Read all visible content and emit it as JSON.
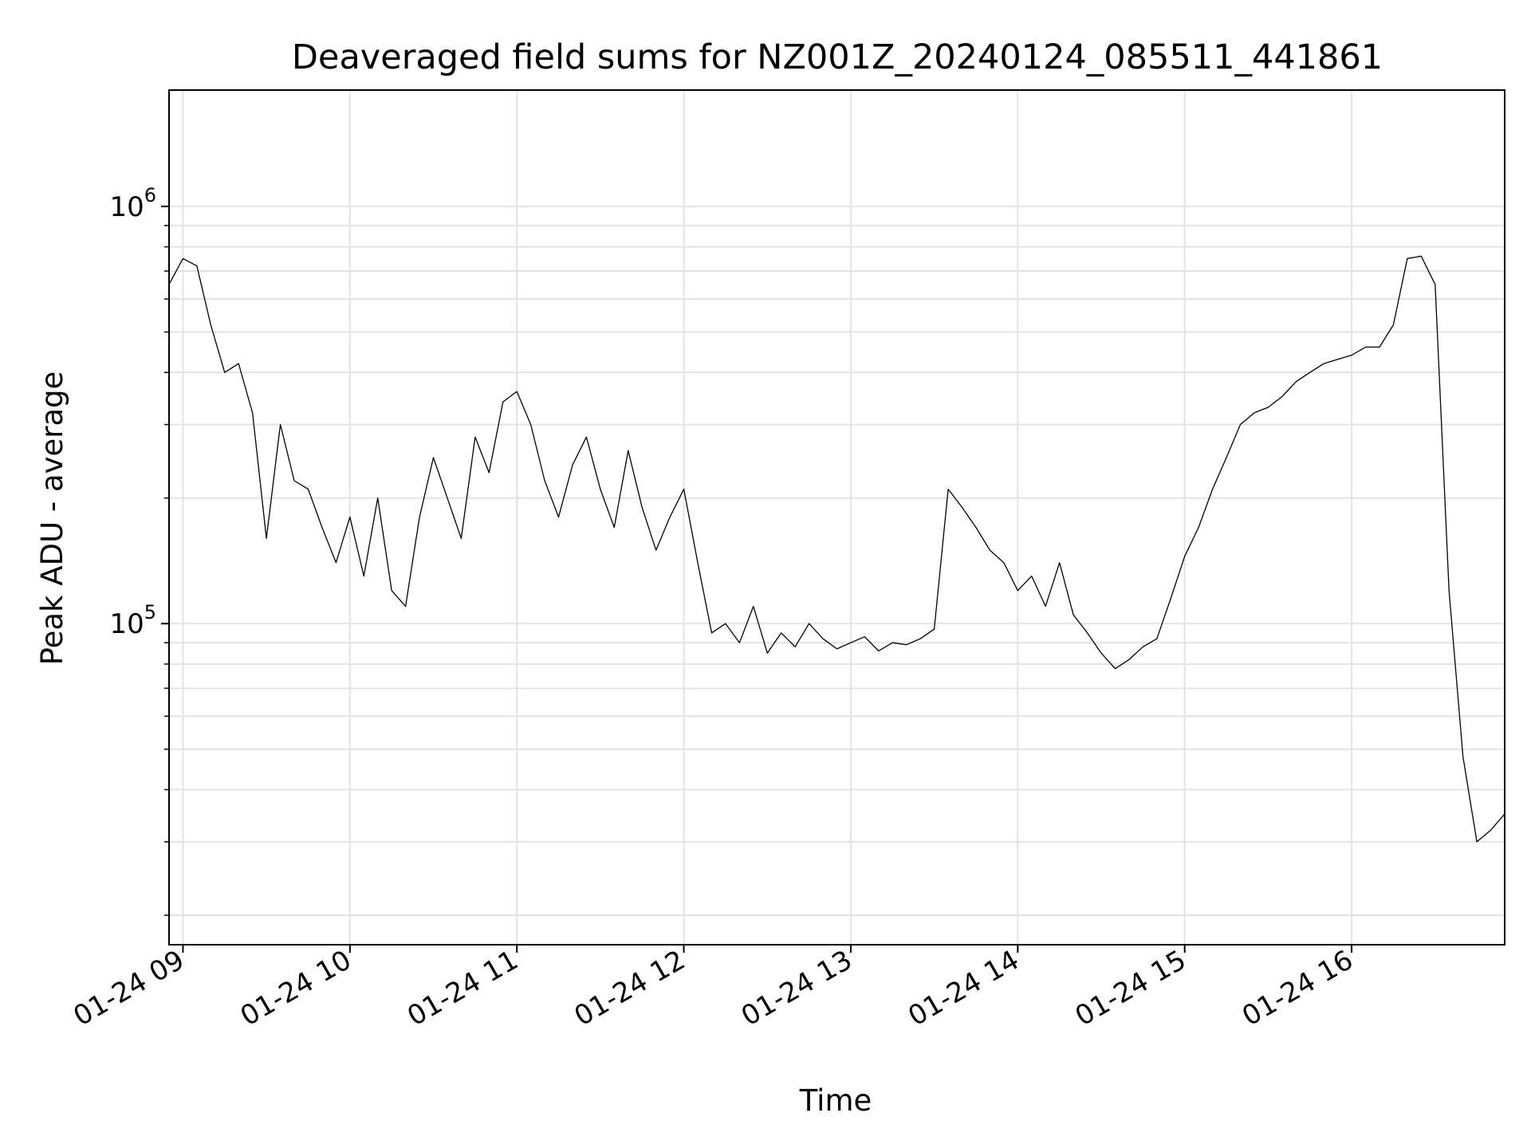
{
  "chart_data": {
    "type": "line",
    "title": "Deaveraged field sums for NZ001Z_20240124_085511_441861",
    "xlabel": "Time",
    "ylabel": "Peak ADU - average",
    "x_ticks": [
      "01-24 09",
      "01-24 10",
      "01-24 11",
      "01-24 12",
      "01-24 13",
      "01-24 14",
      "01-24 15",
      "01-24 16"
    ],
    "y_ticks": [
      {
        "base": "10",
        "exp": "5",
        "value": 100000
      },
      {
        "base": "10",
        "exp": "6",
        "value": 1000000
      }
    ],
    "x_range": [
      "2024-01-24 08:55",
      "2024-01-24 16:55"
    ],
    "y_range": [
      17000,
      1900000
    ],
    "y_scale": "log",
    "grid": true,
    "line_color": "#000000",
    "series": [
      {
        "x": [
          "2024-01-24 08:55",
          "2024-01-24 09:00",
          "2024-01-24 09:05",
          "2024-01-24 09:10",
          "2024-01-24 09:15",
          "2024-01-24 09:20",
          "2024-01-24 09:25",
          "2024-01-24 09:30",
          "2024-01-24 09:35",
          "2024-01-24 09:40",
          "2024-01-24 09:45",
          "2024-01-24 09:50",
          "2024-01-24 09:55",
          "2024-01-24 10:00",
          "2024-01-24 10:05",
          "2024-01-24 10:10",
          "2024-01-24 10:15",
          "2024-01-24 10:20",
          "2024-01-24 10:25",
          "2024-01-24 10:30",
          "2024-01-24 10:35",
          "2024-01-24 10:40",
          "2024-01-24 10:45",
          "2024-01-24 10:50",
          "2024-01-24 10:55",
          "2024-01-24 11:00",
          "2024-01-24 11:05",
          "2024-01-24 11:10",
          "2024-01-24 11:15",
          "2024-01-24 11:20",
          "2024-01-24 11:25",
          "2024-01-24 11:30",
          "2024-01-24 11:35",
          "2024-01-24 11:40",
          "2024-01-24 11:45",
          "2024-01-24 11:50",
          "2024-01-24 11:55",
          "2024-01-24 12:00",
          "2024-01-24 12:05",
          "2024-01-24 12:10",
          "2024-01-24 12:15",
          "2024-01-24 12:20",
          "2024-01-24 12:25",
          "2024-01-24 12:30",
          "2024-01-24 12:35",
          "2024-01-24 12:40",
          "2024-01-24 12:45",
          "2024-01-24 12:50",
          "2024-01-24 12:55",
          "2024-01-24 13:00",
          "2024-01-24 13:05",
          "2024-01-24 13:10",
          "2024-01-24 13:15",
          "2024-01-24 13:20",
          "2024-01-24 13:25",
          "2024-01-24 13:30",
          "2024-01-24 13:35",
          "2024-01-24 13:40",
          "2024-01-24 13:45",
          "2024-01-24 13:50",
          "2024-01-24 13:55",
          "2024-01-24 14:00",
          "2024-01-24 14:05",
          "2024-01-24 14:10",
          "2024-01-24 14:15",
          "2024-01-24 14:20",
          "2024-01-24 14:25",
          "2024-01-24 14:30",
          "2024-01-24 14:35",
          "2024-01-24 14:40",
          "2024-01-24 14:45",
          "2024-01-24 14:50",
          "2024-01-24 14:55",
          "2024-01-24 15:00",
          "2024-01-24 15:05",
          "2024-01-24 15:10",
          "2024-01-24 15:15",
          "2024-01-24 15:20",
          "2024-01-24 15:25",
          "2024-01-24 15:30",
          "2024-01-24 15:35",
          "2024-01-24 15:40",
          "2024-01-24 15:45",
          "2024-01-24 15:50",
          "2024-01-24 15:55",
          "2024-01-24 16:00",
          "2024-01-24 16:05",
          "2024-01-24 16:10",
          "2024-01-24 16:15",
          "2024-01-24 16:20",
          "2024-01-24 16:25",
          "2024-01-24 16:30",
          "2024-01-24 16:35",
          "2024-01-24 16:40",
          "2024-01-24 16:45",
          "2024-01-24 16:50",
          "2024-01-24 16:55"
        ],
        "y": [
          650000,
          750000,
          720000,
          520000,
          400000,
          420000,
          320000,
          160000,
          300000,
          220000,
          210000,
          170000,
          140000,
          180000,
          130000,
          200000,
          120000,
          110000,
          180000,
          250000,
          200000,
          160000,
          280000,
          230000,
          340000,
          360000,
          300000,
          220000,
          180000,
          240000,
          280000,
          210000,
          170000,
          260000,
          190000,
          150000,
          180000,
          210000,
          140000,
          95000,
          100000,
          90000,
          110000,
          85000,
          95000,
          88000,
          100000,
          92000,
          87000,
          90000,
          93000,
          86000,
          90000,
          89000,
          92000,
          97000,
          210000,
          190000,
          170000,
          150000,
          140000,
          120000,
          130000,
          110000,
          140000,
          105000,
          95000,
          85000,
          78000,
          82000,
          88000,
          92000,
          115000,
          145000,
          170000,
          210000,
          250000,
          300000,
          320000,
          330000,
          350000,
          380000,
          400000,
          420000,
          430000,
          440000,
          460000,
          460000,
          520000,
          750000,
          760000,
          650000,
          120000,
          48000,
          30000,
          32000,
          35000
        ]
      }
    ]
  }
}
